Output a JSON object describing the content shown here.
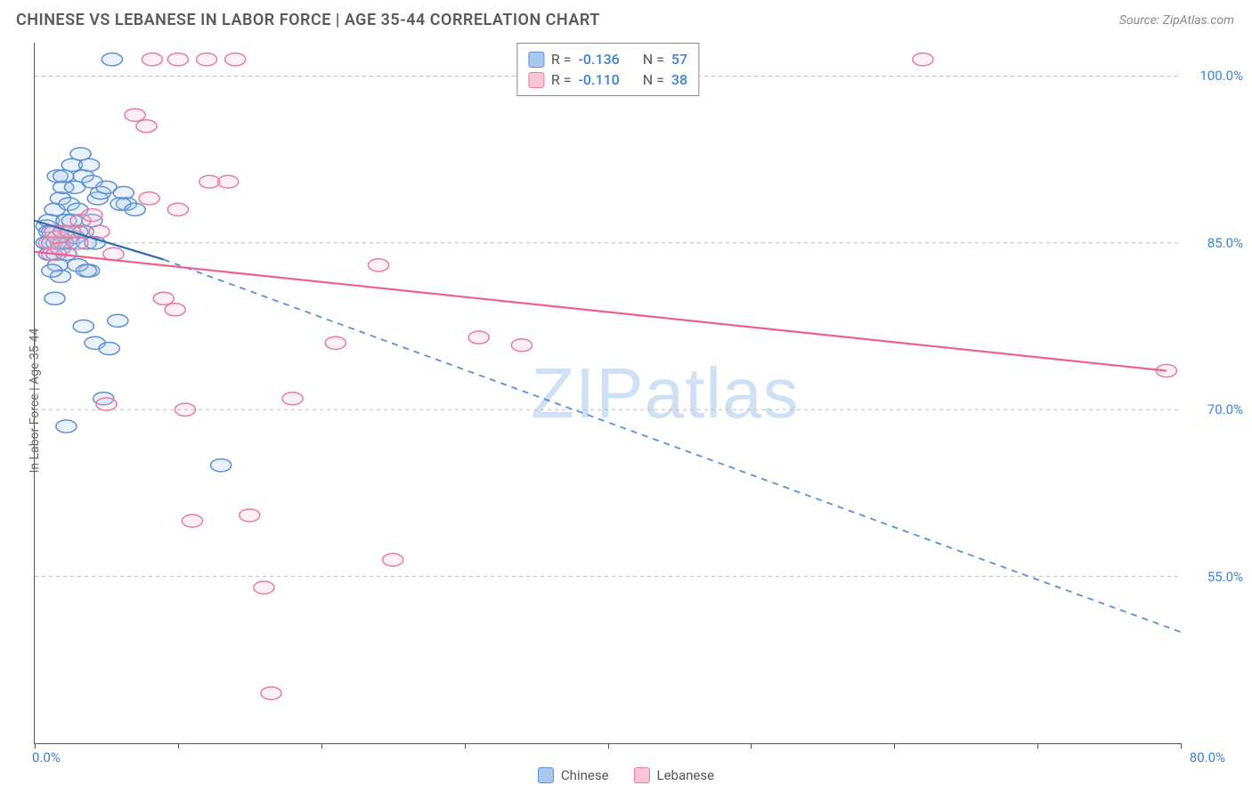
{
  "header": {
    "title": "CHINESE VS LEBANESE IN LABOR FORCE | AGE 35-44 CORRELATION CHART",
    "source": "Source: ZipAtlas.com"
  },
  "y_axis_label": "In Labor Force | Age 35-44",
  "watermark": {
    "part1": "ZIP",
    "part2": "atlas"
  },
  "colors": {
    "chinese_fill": "#a8c8ef",
    "chinese_stroke": "#5b8fd6",
    "lebanese_fill": "#f6c5d3",
    "lebanese_stroke": "#e77ca0",
    "chinese_line": "#2b6cb0",
    "lebanese_line": "#ec5f8e",
    "axis_value": "#3b82d6",
    "grid": "#bbbbbb",
    "background": "#ffffff"
  },
  "chart": {
    "type": "scatter",
    "xlim": [
      0,
      80
    ],
    "ylim": [
      40,
      103
    ],
    "marker_radius": 9,
    "x_ticks": [
      0,
      10,
      20,
      30,
      40,
      50,
      60,
      70,
      80
    ],
    "x_tick_labels": {
      "0": "0.0%",
      "80": "80.0%"
    },
    "y_grid": [
      {
        "v": 100,
        "label": "100.0%"
      },
      {
        "v": 85,
        "label": "85.0%"
      },
      {
        "v": 70,
        "label": "70.0%"
      },
      {
        "v": 55,
        "label": "55.0%"
      }
    ],
    "legend": [
      {
        "swatch_fill": "#a8c8ef",
        "swatch_stroke": "#5b8fd6",
        "r_label": "R =",
        "r_val": "-0.136",
        "n_label": "N =",
        "n_val": "57"
      },
      {
        "swatch_fill": "#f6c5d3",
        "swatch_stroke": "#e77ca0",
        "r_label": "R =",
        "r_val": "-0.110",
        "n_label": "N =",
        "n_val": "38"
      }
    ],
    "bottom_legend": [
      {
        "swatch_fill": "#a8c8ef",
        "swatch_stroke": "#5b8fd6",
        "label": "Chinese"
      },
      {
        "swatch_fill": "#f6c5d3",
        "swatch_stroke": "#e77ca0",
        "label": "Lebanese"
      }
    ],
    "trend_lines": [
      {
        "series": "chinese",
        "x1": 0,
        "y1": 87,
        "x2": 9,
        "y2": 83.5,
        "style": "solid",
        "color": "#2b6cb0"
      },
      {
        "series": "chinese",
        "x1": 9,
        "y1": 83.5,
        "x2": 80,
        "y2": 50,
        "style": "dash",
        "color": "#5b8fd6"
      },
      {
        "series": "lebanese",
        "x1": 0,
        "y1": 84.2,
        "x2": 79,
        "y2": 73.5,
        "style": "solid",
        "color": "#ec5f8e"
      }
    ],
    "series": [
      {
        "name": "chinese",
        "fill": "#a8c8ef",
        "stroke": "#5b8fd6",
        "points": [
          [
            0.8,
            85
          ],
          [
            0.8,
            86.5
          ],
          [
            1,
            84
          ],
          [
            1,
            87
          ],
          [
            1.2,
            85
          ],
          [
            1.2,
            86
          ],
          [
            1.4,
            88
          ],
          [
            1.4,
            80
          ],
          [
            1.5,
            84
          ],
          [
            1.6,
            83
          ],
          [
            1.6,
            91
          ],
          [
            1.8,
            85
          ],
          [
            1.8,
            89
          ],
          [
            2,
            86
          ],
          [
            2,
            90
          ],
          [
            2.2,
            84
          ],
          [
            2.2,
            87
          ],
          [
            2.4,
            85
          ],
          [
            2.4,
            88.5
          ],
          [
            2.6,
            87
          ],
          [
            2.6,
            92
          ],
          [
            2.8,
            85.5
          ],
          [
            2.8,
            90
          ],
          [
            3,
            88
          ],
          [
            3,
            86
          ],
          [
            3.2,
            93
          ],
          [
            3.4,
            86
          ],
          [
            3.4,
            91
          ],
          [
            3.6,
            85
          ],
          [
            3.8,
            92
          ],
          [
            4,
            87
          ],
          [
            4,
            90.5
          ],
          [
            4.2,
            76
          ],
          [
            4.4,
            89
          ],
          [
            4.6,
            89.5
          ],
          [
            5,
            90
          ],
          [
            5.2,
            75.5
          ],
          [
            5.4,
            101.5
          ],
          [
            6.2,
            89.5
          ],
          [
            6.4,
            88.5
          ],
          [
            3.8,
            82.5
          ],
          [
            2.2,
            68.5
          ],
          [
            4.8,
            71
          ],
          [
            5.8,
            78
          ],
          [
            4.2,
            85
          ],
          [
            3,
            83
          ],
          [
            1.8,
            82
          ],
          [
            1.2,
            82.5
          ],
          [
            3.6,
            82.5
          ],
          [
            3.4,
            77.5
          ],
          [
            13,
            65
          ],
          [
            6,
            88.5
          ],
          [
            7,
            88
          ],
          [
            1,
            86
          ],
          [
            2,
            91
          ],
          [
            1.5,
            85
          ],
          [
            2,
            85
          ]
        ]
      },
      {
        "name": "lebanese",
        "fill": "#f6c5d3",
        "stroke": "#e77ca0",
        "points": [
          [
            1,
            85
          ],
          [
            1.2,
            84
          ],
          [
            1.4,
            86
          ],
          [
            1.6,
            85.5
          ],
          [
            1.8,
            84.5
          ],
          [
            2,
            86
          ],
          [
            2.5,
            86
          ],
          [
            3,
            85
          ],
          [
            3.2,
            87
          ],
          [
            4,
            87.5
          ],
          [
            4.5,
            86
          ],
          [
            5,
            70.5
          ],
          [
            5.5,
            84
          ],
          [
            7,
            96.5
          ],
          [
            7.8,
            95.5
          ],
          [
            8,
            89
          ],
          [
            8.2,
            101.5
          ],
          [
            9,
            80
          ],
          [
            9.8,
            79
          ],
          [
            10,
            88
          ],
          [
            10.5,
            70
          ],
          [
            11,
            60
          ],
          [
            12,
            101.5
          ],
          [
            12.2,
            90.5
          ],
          [
            13.5,
            90.5
          ],
          [
            14,
            101.5
          ],
          [
            15,
            60.5
          ],
          [
            16,
            54
          ],
          [
            16.5,
            44.5
          ],
          [
            18,
            71
          ],
          [
            21,
            76
          ],
          [
            24,
            83
          ],
          [
            25,
            56.5
          ],
          [
            31,
            76.5
          ],
          [
            34,
            75.8
          ],
          [
            62,
            101.5
          ],
          [
            79,
            73.5
          ],
          [
            10,
            101.5
          ]
        ]
      }
    ]
  }
}
